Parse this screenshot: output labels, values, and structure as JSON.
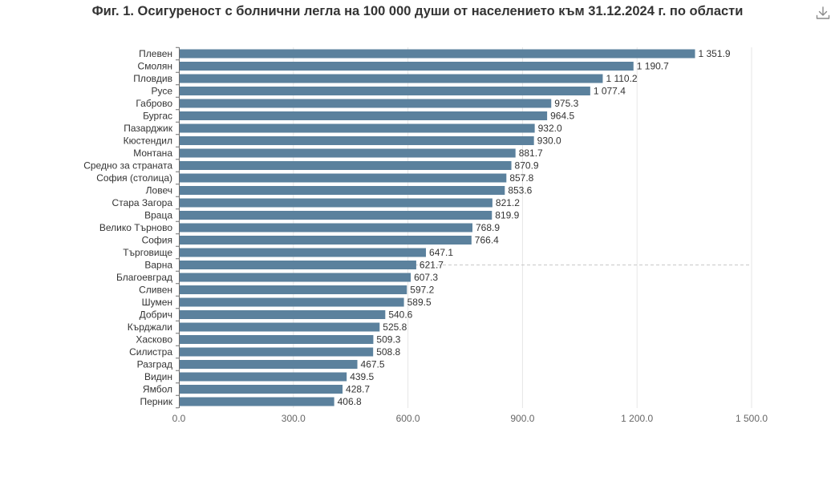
{
  "chart_data": {
    "type": "bar",
    "orientation": "horizontal",
    "title": "Фиг. 1. Осигуреност с болнични легла на 100 000 души от населението към 31.12.2024 г. по области",
    "categories": [
      "Плевен",
      "Смолян",
      "Пловдив",
      "Русе",
      "Габрово",
      "Бургас",
      "Пазарджик",
      "Кюстендил",
      "Монтана",
      "Средно за страната",
      "София (столица)",
      "Ловеч",
      "Стара Загора",
      "Враца",
      "Велико Търново",
      "София",
      "Търговище",
      "Варна",
      "Благоевград",
      "Сливен",
      "Шумен",
      "Добрич",
      "Кърджали",
      "Хасково",
      "Силистра",
      "Разград",
      "Видин",
      "Ямбол",
      "Перник"
    ],
    "values": [
      1351.9,
      1190.7,
      1110.2,
      1077.4,
      975.3,
      964.5,
      932.0,
      930.0,
      881.7,
      870.9,
      857.8,
      853.6,
      821.2,
      819.9,
      768.9,
      766.4,
      647.1,
      621.7,
      607.3,
      597.2,
      589.5,
      540.6,
      525.8,
      509.3,
      508.8,
      467.5,
      439.5,
      428.7,
      406.8
    ],
    "value_labels": [
      "1 351.9",
      "1 190.7",
      "1 110.2",
      "1 077.4",
      "975.3",
      "964.5",
      "932.0",
      "930.0",
      "881.7",
      "870.9",
      "857.8",
      "853.6",
      "821.2",
      "819.9",
      "768.9",
      "766.4",
      "647.1",
      "621.7",
      "607.3",
      "597.2",
      "589.5",
      "540.6",
      "525.8",
      "509.3",
      "508.8",
      "467.5",
      "439.5",
      "428.7",
      "406.8"
    ],
    "xlim": [
      0,
      1500
    ],
    "x_ticks": [
      0,
      300,
      600,
      900,
      1200,
      1500
    ],
    "x_tick_labels": [
      "0.0",
      "300.0",
      "600.0",
      "900.0",
      "1 200.0",
      "1 500.0"
    ],
    "grid": true,
    "reference_line_category": "Варна",
    "bar_color": "#5b819d",
    "grid_color": "#e6e6e6",
    "reference_line_color": "#c8c8c8"
  },
  "toolbar": {
    "download_icon": "download-icon"
  }
}
